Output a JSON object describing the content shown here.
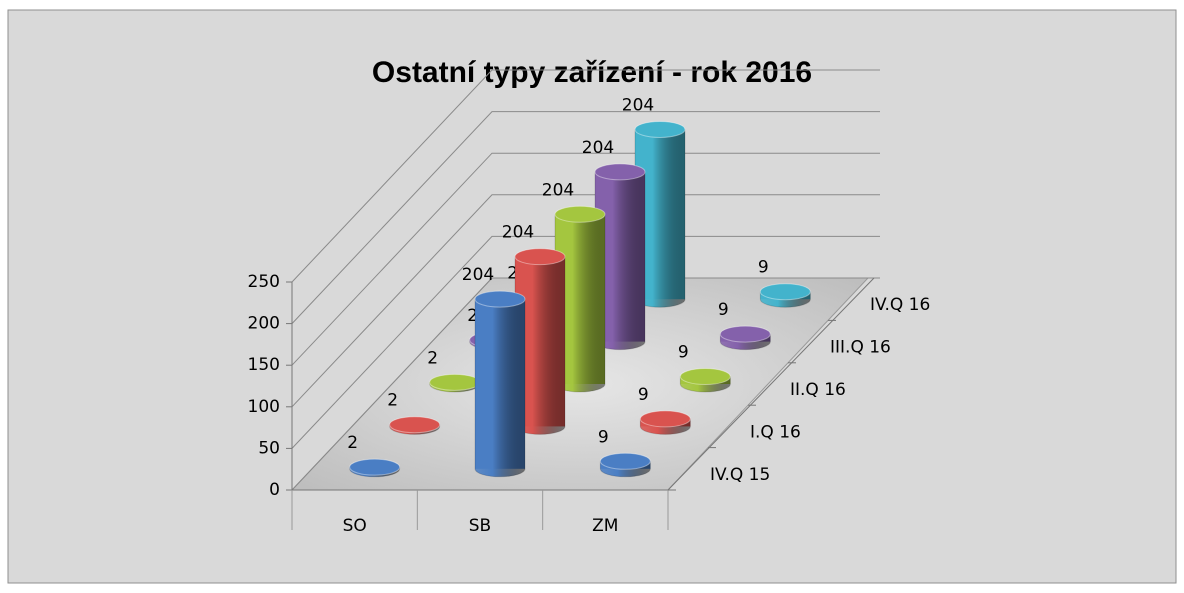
{
  "chart_data": {
    "type": "bar3d",
    "title": "Ostatní typy zařízení - rok 2016",
    "categories": [
      "SO",
      "SB",
      "ZM"
    ],
    "series": [
      {
        "name": "IV.Q 15",
        "color": "#4a7ec4",
        "values": [
          2,
          204,
          9
        ]
      },
      {
        "name": "I.Q 16",
        "color": "#d9534f",
        "values": [
          2,
          204,
          9
        ]
      },
      {
        "name": "II.Q 16",
        "color": "#a4c63f",
        "values": [
          2,
          204,
          9
        ]
      },
      {
        "name": "III.Q 16",
        "color": "#8461ab",
        "values": [
          2,
          204,
          9
        ]
      },
      {
        "name": "IV.Q 16",
        "color": "#43b3cc",
        "values": [
          2,
          204,
          9
        ]
      }
    ],
    "ylim": [
      0,
      250
    ],
    "yticks": [
      0,
      50,
      100,
      150,
      200,
      250
    ],
    "grid": true
  }
}
